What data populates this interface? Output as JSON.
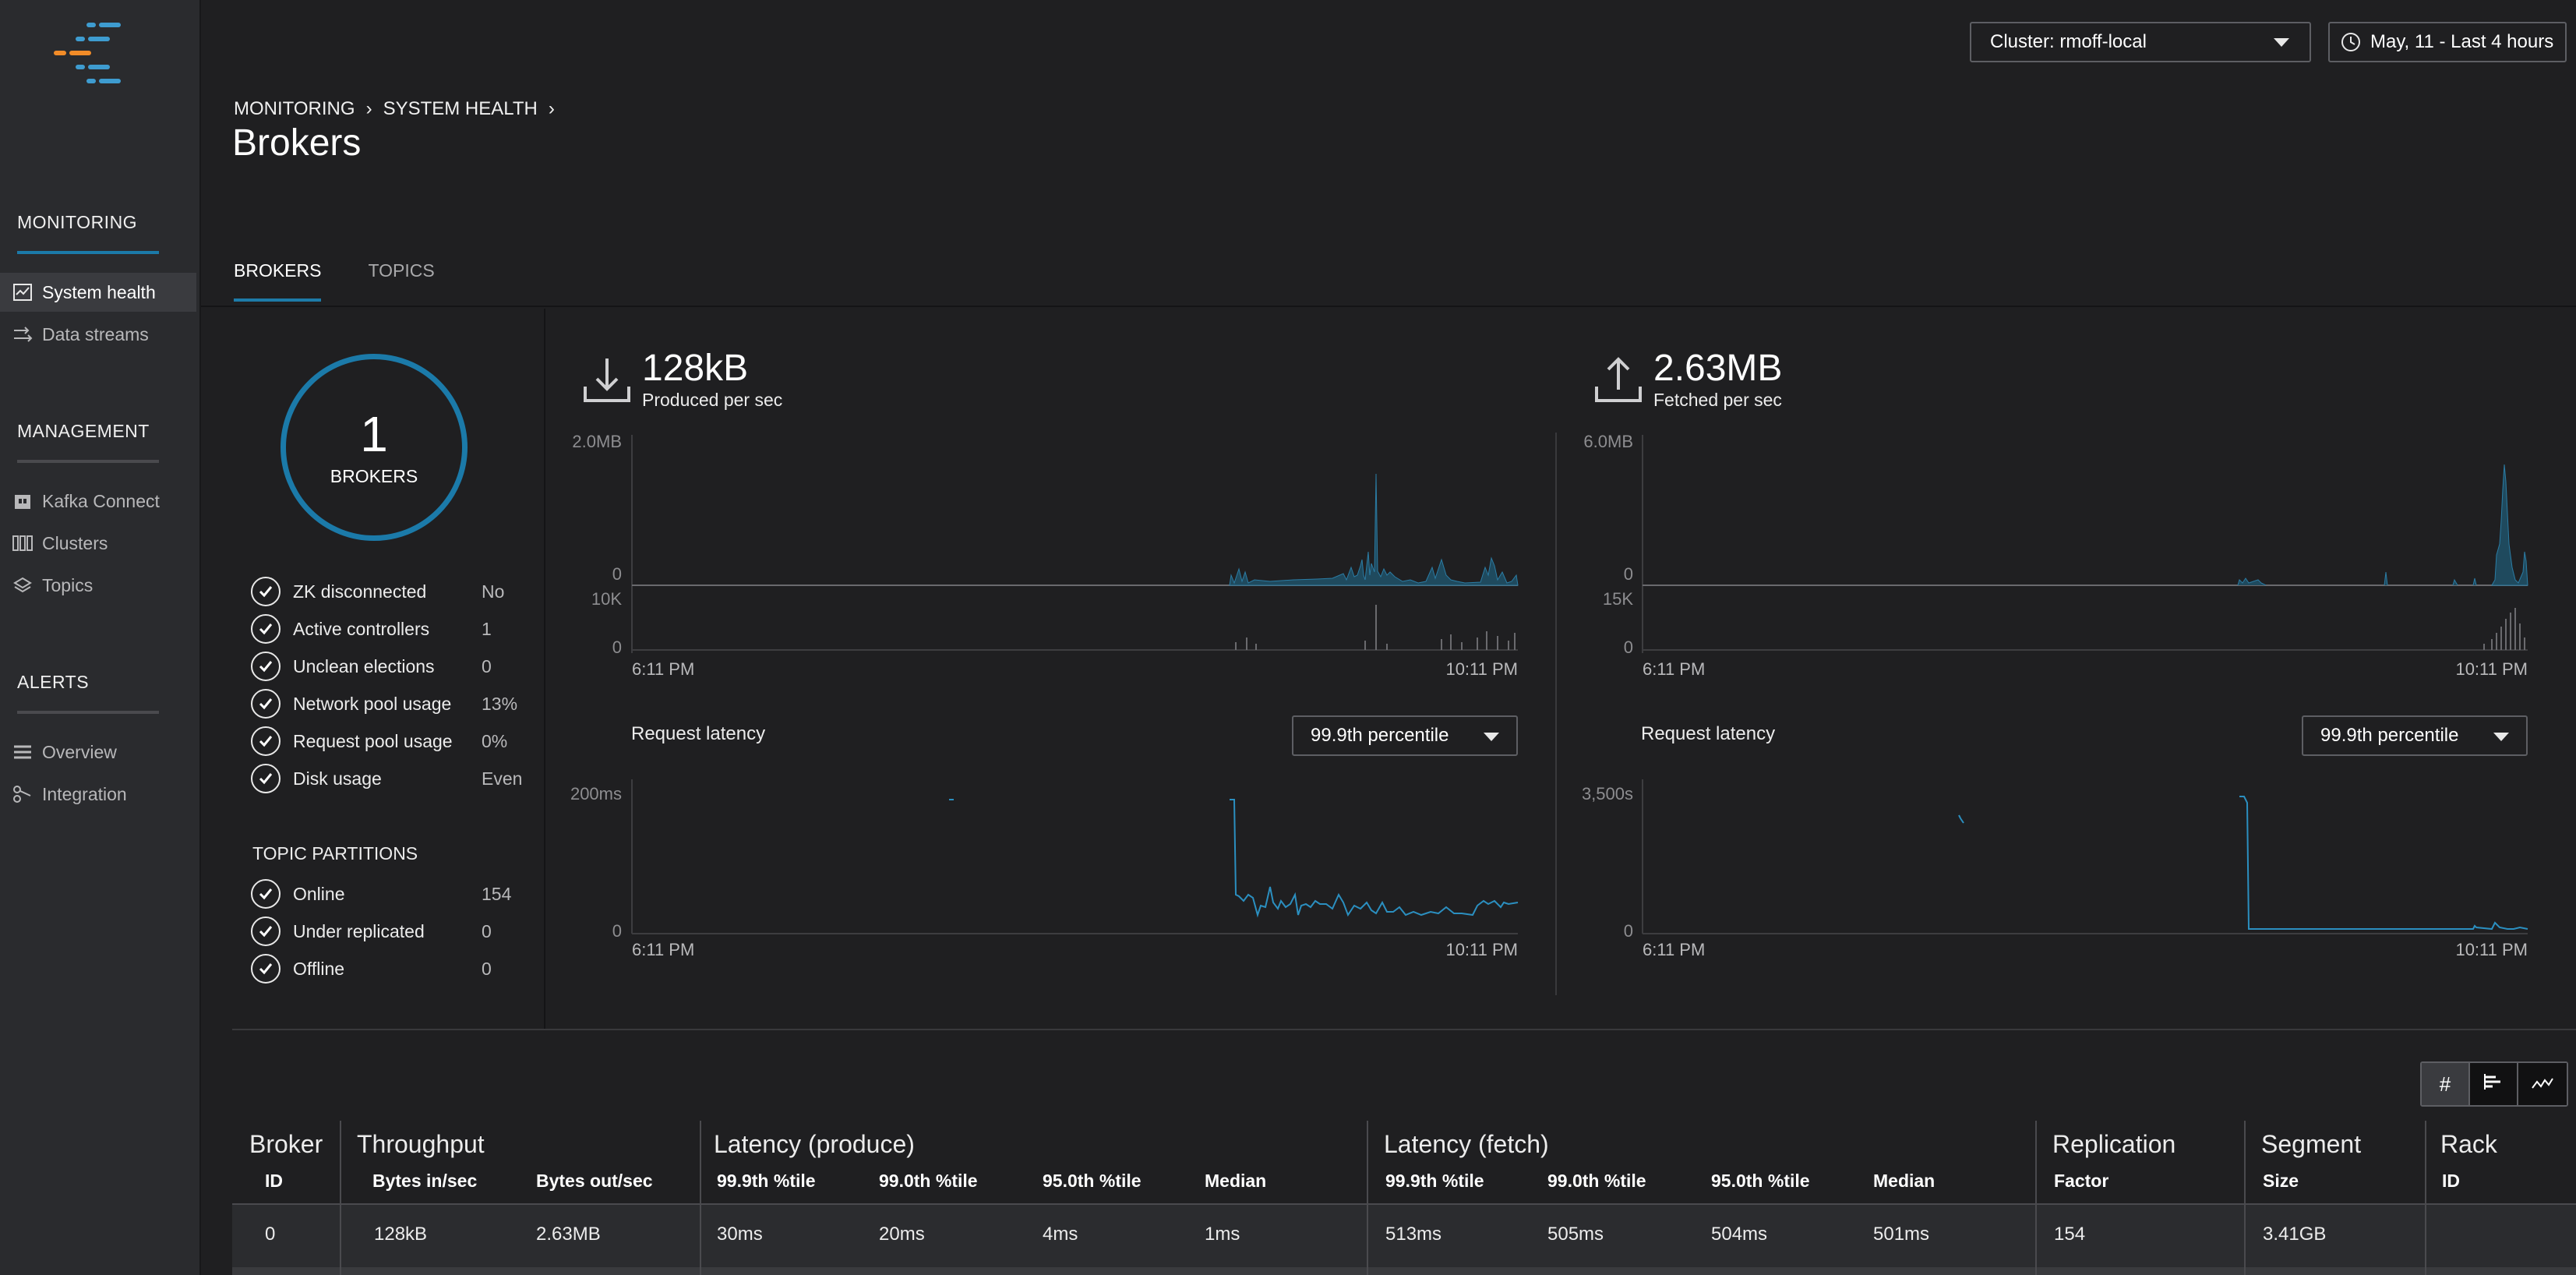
{
  "sidebar": {
    "sections": [
      {
        "title": "MONITORING",
        "items": [
          {
            "label": "System health",
            "icon": "chart-box-icon",
            "active": true
          },
          {
            "label": "Data streams",
            "icon": "streams-icon",
            "active": false
          }
        ]
      },
      {
        "title": "MANAGEMENT",
        "items": [
          {
            "label": "Kafka Connect",
            "icon": "plug-icon"
          },
          {
            "label": "Clusters",
            "icon": "cluster-icon"
          },
          {
            "label": "Topics",
            "icon": "layers-icon"
          }
        ]
      },
      {
        "title": "ALERTS",
        "items": [
          {
            "label": "Overview",
            "icon": "list-icon"
          },
          {
            "label": "Integration",
            "icon": "integration-icon"
          }
        ]
      }
    ],
    "colors": {
      "accent": "#1b7aa9",
      "logo_blue": "#3e9cd0",
      "logo_orange": "#f28c28"
    }
  },
  "header": {
    "cluster_select": "Cluster: rmoff-local",
    "time_select": "May, 11 - Last 4 hours",
    "breadcrumb": [
      "MONITORING",
      "SYSTEM HEALTH"
    ],
    "title": "Brokers",
    "tabs": [
      {
        "label": "BROKERS",
        "active": true
      },
      {
        "label": "TOPICS",
        "active": false
      }
    ]
  },
  "summary": {
    "brokers_count": "1",
    "brokers_label": "BROKERS",
    "checks": [
      {
        "label": "ZK disconnected",
        "value": "No"
      },
      {
        "label": "Active controllers",
        "value": "1"
      },
      {
        "label": "Unclean elections",
        "value": "0"
      },
      {
        "label": "Network pool usage",
        "value": "13%"
      },
      {
        "label": "Request pool usage",
        "value": "0%"
      },
      {
        "label": "Disk usage",
        "value": "Even"
      }
    ],
    "topic_partitions_title": "TOPIC PARTITIONS",
    "partitions": [
      {
        "label": "Online",
        "value": "154"
      },
      {
        "label": "Under replicated",
        "value": "0"
      },
      {
        "label": "Offline",
        "value": "0"
      }
    ]
  },
  "produced": {
    "value": "128kB",
    "label": "Produced per sec",
    "throughput_ymax": "2.0MB",
    "throughput_ymin": "0",
    "requests_ymax": "10K",
    "requests_ymin": "0",
    "x_start": "6:11 PM",
    "x_end": "10:11 PM",
    "latency_label": "Request latency",
    "percentile": "99.9th percentile",
    "latency_ymax": "200ms",
    "latency_ymin": "0"
  },
  "fetched": {
    "value": "2.63MB",
    "label": "Fetched per sec",
    "throughput_ymax": "6.0MB",
    "throughput_ymin": "0",
    "requests_ymax": "15K",
    "requests_ymin": "0",
    "x_start": "6:11 PM",
    "x_end": "10:11 PM",
    "latency_label": "Request latency",
    "percentile": "99.9th percentile",
    "latency_ymax": "3,500s",
    "latency_ymin": "0"
  },
  "table": {
    "groups": {
      "broker": "Broker",
      "throughput": "Throughput",
      "latency_produce": "Latency (produce)",
      "latency_fetch": "Latency (fetch)",
      "replication": "Replication",
      "segment": "Segment",
      "rack": "Rack"
    },
    "columns": {
      "broker_id": "ID",
      "bytes_in": "Bytes in/sec",
      "bytes_out": "Bytes out/sec",
      "p_999": "99.9th %tile",
      "p_990": "99.0th %tile",
      "p_950": "95.0th %tile",
      "p_median": "Median",
      "f_999": "99.9th %tile",
      "f_990": "99.0th %tile",
      "f_950": "95.0th %tile",
      "f_median": "Median",
      "replication": "Factor",
      "segment": "Size",
      "rack": "ID"
    },
    "row": {
      "broker_id": "0",
      "bytes_in": "128kB",
      "bytes_out": "2.63MB",
      "p_999": "30ms",
      "p_990": "20ms",
      "p_950": "4ms",
      "p_median": "1ms",
      "f_999": "513ms",
      "f_990": "505ms",
      "f_950": "504ms",
      "f_median": "501ms",
      "replication": "154",
      "segment": "3.41GB",
      "rack": ""
    }
  }
}
